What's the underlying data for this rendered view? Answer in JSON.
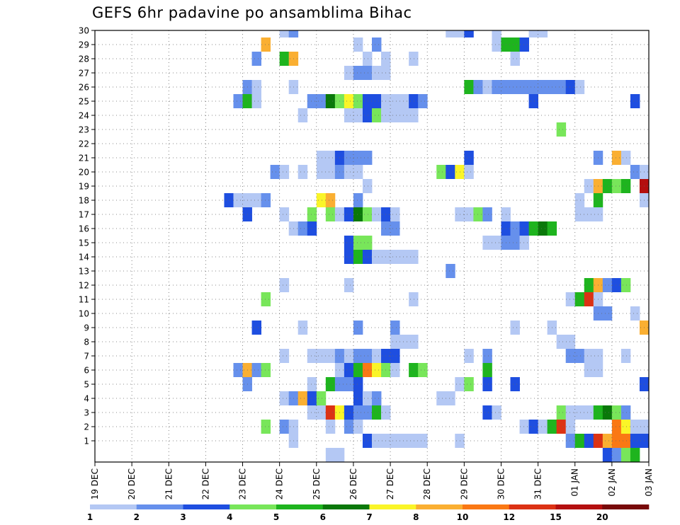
{
  "chart_data": {
    "type": "heatmap",
    "title": "GEFS 6hr padavine po ansamblima Bihac",
    "xlabel": "",
    "ylabel": "",
    "x_tick_labels": [
      "19 DEC",
      "20 DEC",
      "21 DEC",
      "22 DEC",
      "23 DEC",
      "24 DEC",
      "25 DEC",
      "26 DEC",
      "27 DEC",
      "28 DEC",
      "29 DEC",
      "30 DEC",
      "31 DEC",
      "01 JAN",
      "02 JAN",
      "03 JAN"
    ],
    "y_tick_labels": [
      "1",
      "2",
      "3",
      "4",
      "5",
      "6",
      "7",
      "8",
      "9",
      "10",
      "11",
      "12",
      "13",
      "14",
      "15",
      "16",
      "17",
      "18",
      "19",
      "20",
      "21",
      "22",
      "23",
      "24",
      "25",
      "26",
      "27",
      "28",
      "29",
      "30"
    ],
    "x_range": [
      "19 DEC 00Z",
      "03 JAN 00Z"
    ],
    "y_range": [
      0,
      30
    ],
    "steps_per_day": 4,
    "grid": "dotted",
    "legend": {
      "position": "bottom",
      "levels": [
        "1",
        "2",
        "3",
        "4",
        "5",
        "6",
        "7",
        "8",
        "10",
        "12",
        "15",
        "20"
      ],
      "colors": [
        "#b4c8f4",
        "#6690ec",
        "#1e4ee0",
        "#78e65a",
        "#1eb41e",
        "#0a780a",
        "#faf528",
        "#faaf32",
        "#fa7814",
        "#dc3214",
        "#b40f0f",
        "#780a0a"
      ]
    },
    "cells": [
      {
        "m": 30,
        "s": [
          [
            20,
            1
          ],
          [
            21,
            2
          ],
          [
            38,
            1
          ],
          [
            39,
            1
          ],
          [
            40,
            3
          ],
          [
            43,
            1
          ],
          [
            47,
            1
          ],
          [
            48,
            1
          ]
        ]
      },
      {
        "m": 29,
        "s": [
          [
            18,
            8
          ],
          [
            28,
            1
          ],
          [
            30,
            2
          ],
          [
            43,
            1
          ],
          [
            44,
            5
          ],
          [
            45,
            5
          ],
          [
            46,
            3
          ]
        ]
      },
      {
        "m": 28,
        "s": [
          [
            17,
            2
          ],
          [
            20,
            5
          ],
          [
            21,
            8
          ],
          [
            29,
            1
          ],
          [
            31,
            1
          ],
          [
            34,
            1
          ],
          [
            45,
            1
          ]
        ]
      },
      {
        "m": 27,
        "s": [
          [
            27,
            1
          ],
          [
            28,
            2
          ],
          [
            29,
            2
          ],
          [
            30,
            1
          ],
          [
            31,
            1
          ]
        ]
      },
      {
        "m": 26,
        "s": [
          [
            16,
            2
          ],
          [
            17,
            1
          ],
          [
            21,
            1
          ],
          [
            40,
            5
          ],
          [
            41,
            2
          ],
          [
            42,
            1
          ],
          [
            43,
            2
          ],
          [
            44,
            2
          ],
          [
            45,
            2
          ],
          [
            46,
            2
          ],
          [
            47,
            2
          ],
          [
            48,
            2
          ],
          [
            49,
            2
          ],
          [
            50,
            2
          ],
          [
            51,
            3
          ],
          [
            52,
            1
          ]
        ]
      },
      {
        "m": 25,
        "s": [
          [
            15,
            2
          ],
          [
            16,
            5
          ],
          [
            17,
            1
          ],
          [
            23,
            2
          ],
          [
            24,
            2
          ],
          [
            25,
            6
          ],
          [
            26,
            4
          ],
          [
            27,
            7
          ],
          [
            28,
            4
          ],
          [
            29,
            3
          ],
          [
            30,
            3
          ],
          [
            31,
            1
          ],
          [
            32,
            1
          ],
          [
            33,
            1
          ],
          [
            34,
            3
          ],
          [
            35,
            2
          ],
          [
            47,
            3
          ],
          [
            58,
            3
          ]
        ]
      },
      {
        "m": 24,
        "s": [
          [
            22,
            1
          ],
          [
            27,
            1
          ],
          [
            28,
            1
          ],
          [
            29,
            3
          ],
          [
            30,
            4
          ],
          [
            31,
            1
          ],
          [
            32,
            1
          ],
          [
            33,
            1
          ],
          [
            34,
            1
          ]
        ]
      },
      {
        "m": 23,
        "s": [
          [
            50,
            4
          ]
        ]
      },
      {
        "m": 21,
        "s": [
          [
            24,
            1
          ],
          [
            25,
            1
          ],
          [
            26,
            3
          ],
          [
            27,
            2
          ],
          [
            28,
            2
          ],
          [
            29,
            2
          ],
          [
            40,
            3
          ],
          [
            54,
            2
          ],
          [
            56,
            8
          ],
          [
            57,
            1
          ]
        ]
      },
      {
        "m": 20,
        "s": [
          [
            19,
            2
          ],
          [
            20,
            1
          ],
          [
            22,
            1
          ],
          [
            24,
            1
          ],
          [
            25,
            1
          ],
          [
            26,
            2
          ],
          [
            27,
            1
          ],
          [
            28,
            1
          ],
          [
            37,
            4
          ],
          [
            38,
            3
          ],
          [
            39,
            7
          ],
          [
            40,
            1
          ],
          [
            58,
            2
          ],
          [
            59,
            1
          ]
        ]
      },
      {
        "m": 19,
        "s": [
          [
            29,
            1
          ],
          [
            53,
            1
          ],
          [
            54,
            8
          ],
          [
            55,
            5
          ],
          [
            56,
            4
          ],
          [
            57,
            5
          ],
          [
            59,
            11
          ]
        ]
      },
      {
        "m": 18,
        "s": [
          [
            14,
            3
          ],
          [
            15,
            1
          ],
          [
            16,
            1
          ],
          [
            17,
            1
          ],
          [
            18,
            2
          ],
          [
            24,
            7
          ],
          [
            25,
            8
          ],
          [
            28,
            2
          ],
          [
            52,
            1
          ],
          [
            54,
            5
          ],
          [
            59,
            1
          ]
        ]
      },
      {
        "m": 17,
        "s": [
          [
            16,
            3
          ],
          [
            20,
            1
          ],
          [
            23,
            4
          ],
          [
            25,
            4
          ],
          [
            26,
            1
          ],
          [
            27,
            3
          ],
          [
            28,
            6
          ],
          [
            29,
            4
          ],
          [
            30,
            1
          ],
          [
            31,
            3
          ],
          [
            32,
            1
          ],
          [
            39,
            1
          ],
          [
            40,
            1
          ],
          [
            41,
            4
          ],
          [
            42,
            2
          ],
          [
            44,
            1
          ],
          [
            52,
            1
          ],
          [
            53,
            1
          ],
          [
            54,
            1
          ]
        ]
      },
      {
        "m": 16,
        "s": [
          [
            21,
            1
          ],
          [
            22,
            2
          ],
          [
            23,
            3
          ],
          [
            31,
            2
          ],
          [
            32,
            2
          ],
          [
            44,
            3
          ],
          [
            45,
            2
          ],
          [
            46,
            3
          ],
          [
            47,
            5
          ],
          [
            48,
            6
          ],
          [
            49,
            5
          ]
        ]
      },
      {
        "m": 15,
        "s": [
          [
            27,
            3
          ],
          [
            28,
            4
          ],
          [
            29,
            4
          ],
          [
            42,
            1
          ],
          [
            43,
            1
          ],
          [
            44,
            2
          ],
          [
            45,
            2
          ],
          [
            46,
            1
          ]
        ]
      },
      {
        "m": 14,
        "s": [
          [
            27,
            3
          ],
          [
            28,
            5
          ],
          [
            29,
            3
          ],
          [
            30,
            1
          ],
          [
            31,
            1
          ],
          [
            32,
            1
          ],
          [
            33,
            1
          ],
          [
            34,
            1
          ]
        ]
      },
      {
        "m": 13,
        "s": [
          [
            38,
            2
          ]
        ]
      },
      {
        "m": 12,
        "s": [
          [
            20,
            1
          ],
          [
            27,
            1
          ],
          [
            53,
            5
          ],
          [
            54,
            8
          ],
          [
            55,
            2
          ],
          [
            56,
            3
          ],
          [
            57,
            4
          ]
        ]
      },
      {
        "m": 11,
        "s": [
          [
            18,
            4
          ],
          [
            34,
            1
          ],
          [
            51,
            1
          ],
          [
            52,
            5
          ],
          [
            53,
            10
          ],
          [
            54,
            1
          ]
        ]
      },
      {
        "m": 10,
        "s": [
          [
            54,
            2
          ],
          [
            55,
            2
          ],
          [
            58,
            1
          ]
        ]
      },
      {
        "m": 9,
        "s": [
          [
            17,
            3
          ],
          [
            22,
            1
          ],
          [
            28,
            2
          ],
          [
            32,
            2
          ],
          [
            45,
            1
          ],
          [
            49,
            1
          ],
          [
            59,
            8
          ]
        ]
      },
      {
        "m": 8,
        "s": [
          [
            32,
            1
          ],
          [
            33,
            1
          ],
          [
            34,
            1
          ],
          [
            50,
            1
          ],
          [
            51,
            1
          ]
        ]
      },
      {
        "m": 7,
        "s": [
          [
            20,
            1
          ],
          [
            23,
            1
          ],
          [
            24,
            1
          ],
          [
            25,
            1
          ],
          [
            26,
            2
          ],
          [
            27,
            1
          ],
          [
            28,
            2
          ],
          [
            29,
            2
          ],
          [
            30,
            1
          ],
          [
            31,
            3
          ],
          [
            32,
            3
          ],
          [
            40,
            1
          ],
          [
            42,
            2
          ],
          [
            51,
            2
          ],
          [
            52,
            2
          ],
          [
            53,
            1
          ],
          [
            54,
            1
          ],
          [
            57,
            1
          ]
        ]
      },
      {
        "m": 6,
        "s": [
          [
            15,
            2
          ],
          [
            16,
            8
          ],
          [
            17,
            2
          ],
          [
            18,
            4
          ],
          [
            26,
            1
          ],
          [
            27,
            3
          ],
          [
            28,
            5
          ],
          [
            29,
            9
          ],
          [
            30,
            7
          ],
          [
            31,
            4
          ],
          [
            32,
            1
          ],
          [
            34,
            5
          ],
          [
            35,
            4
          ],
          [
            42,
            5
          ],
          [
            53,
            1
          ],
          [
            54,
            1
          ]
        ]
      },
      {
        "m": 5,
        "s": [
          [
            16,
            2
          ],
          [
            23,
            1
          ],
          [
            25,
            5
          ],
          [
            26,
            2
          ],
          [
            27,
            2
          ],
          [
            28,
            3
          ],
          [
            39,
            1
          ],
          [
            40,
            4
          ],
          [
            42,
            3
          ],
          [
            45,
            3
          ],
          [
            59,
            3
          ]
        ]
      },
      {
        "m": 4,
        "s": [
          [
            20,
            1
          ],
          [
            21,
            2
          ],
          [
            22,
            8
          ],
          [
            23,
            3
          ],
          [
            24,
            4
          ],
          [
            28,
            3
          ],
          [
            29,
            1
          ],
          [
            30,
            2
          ],
          [
            37,
            1
          ],
          [
            38,
            1
          ]
        ]
      },
      {
        "m": 3,
        "s": [
          [
            23,
            1
          ],
          [
            24,
            1
          ],
          [
            25,
            10
          ],
          [
            26,
            7
          ],
          [
            27,
            3
          ],
          [
            28,
            2
          ],
          [
            29,
            2
          ],
          [
            30,
            5
          ],
          [
            31,
            1
          ],
          [
            42,
            3
          ],
          [
            43,
            1
          ],
          [
            50,
            4
          ],
          [
            51,
            1
          ],
          [
            52,
            1
          ],
          [
            53,
            1
          ],
          [
            54,
            5
          ],
          [
            55,
            6
          ],
          [
            56,
            4
          ],
          [
            57,
            2
          ]
        ]
      },
      {
        "m": 2,
        "s": [
          [
            18,
            4
          ],
          [
            20,
            2
          ],
          [
            21,
            1
          ],
          [
            25,
            1
          ],
          [
            27,
            2
          ],
          [
            28,
            1
          ],
          [
            46,
            1
          ],
          [
            47,
            3
          ],
          [
            48,
            1
          ],
          [
            49,
            5
          ],
          [
            50,
            10
          ],
          [
            51,
            1
          ],
          [
            56,
            9
          ],
          [
            57,
            7
          ],
          [
            58,
            1
          ],
          [
            59,
            1
          ]
        ]
      },
      {
        "m": 1,
        "s": [
          [
            21,
            1
          ],
          [
            29,
            3
          ],
          [
            30,
            1
          ],
          [
            31,
            1
          ],
          [
            32,
            1
          ],
          [
            33,
            1
          ],
          [
            34,
            1
          ],
          [
            35,
            1
          ],
          [
            39,
            1
          ],
          [
            51,
            2
          ],
          [
            52,
            5
          ],
          [
            53,
            3
          ],
          [
            54,
            10
          ],
          [
            55,
            8
          ],
          [
            56,
            9
          ],
          [
            57,
            9
          ],
          [
            58,
            3
          ],
          [
            59,
            3
          ]
        ]
      },
      {
        "m": 0,
        "s": [
          [
            25,
            1
          ],
          [
            26,
            1
          ],
          [
            55,
            3
          ],
          [
            56,
            2
          ],
          [
            57,
            4
          ],
          [
            58,
            5
          ]
        ]
      }
    ]
  }
}
